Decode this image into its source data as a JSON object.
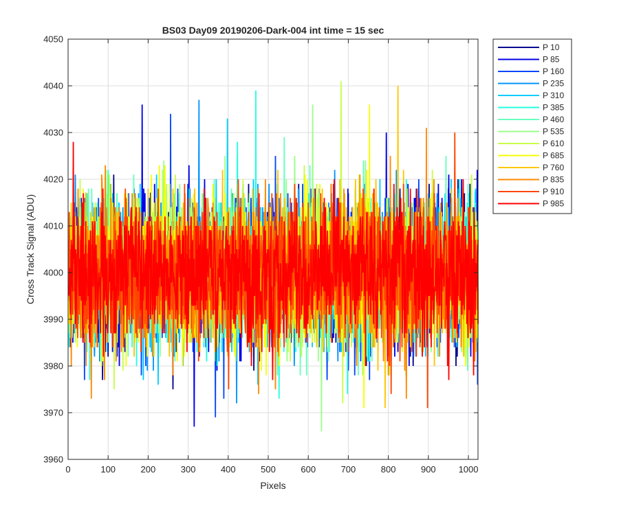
{
  "chart_data": {
    "type": "line",
    "title": "BS03 Day09 20190206-Dark-004 int time = 15 sec",
    "xlabel": "Pixels",
    "ylabel": "Cross Track Signal (ADU)",
    "xlim": [
      0,
      1024
    ],
    "ylim": [
      3960,
      4050
    ],
    "xticks": [
      0,
      100,
      200,
      300,
      400,
      500,
      600,
      700,
      800,
      900,
      1000
    ],
    "yticks": [
      3960,
      3970,
      3980,
      3990,
      4000,
      4010,
      4020,
      4030,
      4040,
      4050
    ],
    "grid": true,
    "legend_position": "outside-top-right",
    "x": "pixel index 1 to 1024",
    "noise_model": {
      "mean": 4000,
      "std": 7.5
    },
    "series": [
      {
        "name": "P 10",
        "color": "#00008f",
        "max": 4021,
        "min": 3975
      },
      {
        "name": "P 85",
        "color": "#0000e8",
        "max": 4036,
        "min": 3967
      },
      {
        "name": "P 160",
        "color": "#0045ff",
        "max": 4034,
        "min": 3969
      },
      {
        "name": "P 235",
        "color": "#0094ff",
        "max": 4037,
        "min": 3972
      },
      {
        "name": "P 310",
        "color": "#00ccff",
        "max": 4033,
        "min": 3976
      },
      {
        "name": "P 385",
        "color": "#22ffe0",
        "max": 4039,
        "min": 3973
      },
      {
        "name": "P 460",
        "color": "#66ffbe",
        "max": 4029,
        "min": 3978
      },
      {
        "name": "P 535",
        "color": "#9bff88",
        "max": 4036,
        "min": 3966
      },
      {
        "name": "P 610",
        "color": "#c6ff45",
        "max": 4041,
        "min": 3972
      },
      {
        "name": "P 685",
        "color": "#f7ff00",
        "max": 4036,
        "min": 3971
      },
      {
        "name": "P 760",
        "color": "#ffc500",
        "max": 4040,
        "min": 3971
      },
      {
        "name": "P 835",
        "color": "#ff8800",
        "max": 4031,
        "min": 3973
      },
      {
        "name": "P 910",
        "color": "#ff4400",
        "max": 4030,
        "min": 3971
      },
      {
        "name": "P 985",
        "color": "#ff0000",
        "max": 4028,
        "min": 3977
      }
    ]
  }
}
